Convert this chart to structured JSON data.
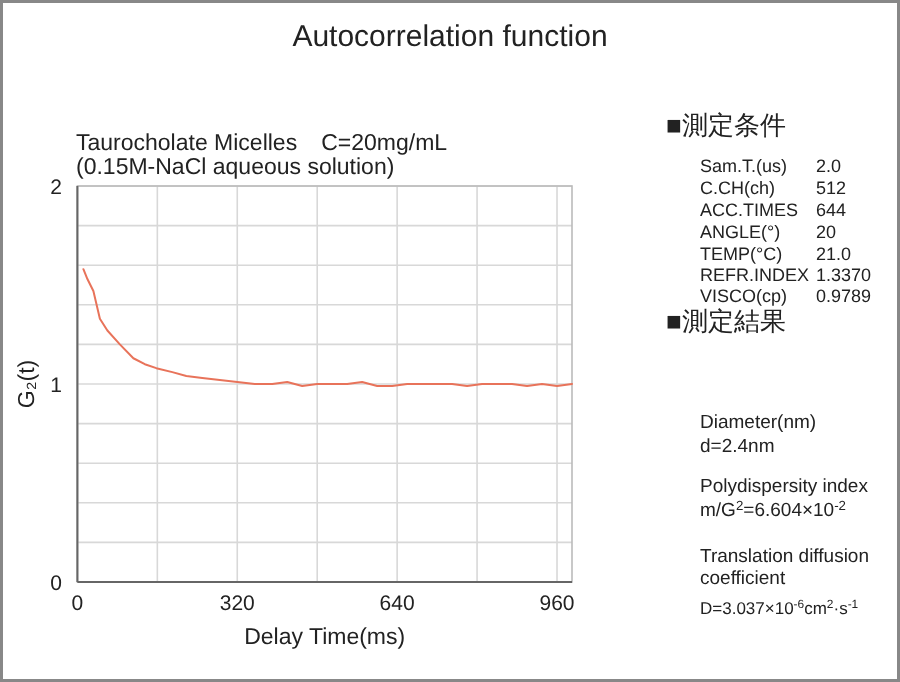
{
  "chart_data": {
    "type": "line",
    "title": "Autocorrelation function",
    "subtitle": "Taurocholate Micelles　C=20mg/mL",
    "xlabel": "Delay Time(ms)",
    "ylabel": "G₂(t)",
    "x": [
      12,
      20,
      32,
      45,
      60,
      85,
      112,
      135,
      158,
      190,
      218,
      250,
      285,
      320,
      355,
      390,
      420,
      450,
      480,
      510,
      540,
      570,
      600,
      630,
      660,
      690,
      720,
      750,
      780,
      810,
      840,
      870,
      900,
      930,
      960,
      990
    ],
    "series": [
      {
        "color": "#e8735a",
        "values": [
          1.58,
          1.53,
          1.47,
          1.33,
          1.27,
          1.2,
          1.13,
          1.1,
          1.08,
          1.06,
          1.04,
          1.03,
          1.02,
          1.01,
          1.0,
          1.0,
          1.01,
          0.99,
          1.0,
          1.0,
          1.0,
          1.01,
          0.99,
          0.99,
          1.0,
          1.0,
          1.0,
          1.0,
          0.99,
          1.0,
          1.0,
          1.0,
          0.99,
          1.0,
          0.99,
          1.0
        ]
      }
    ],
    "xlim": [
      0,
      990
    ],
    "ylim": [
      0,
      2
    ],
    "xticks": [
      0,
      {
        "value": 160,
        "label": null
      },
      320,
      {
        "value": 480,
        "label": null
      },
      640,
      {
        "value": 800,
        "label": null
      },
      960
    ],
    "yticks": [
      0,
      {
        "value": 0.2,
        "label": null
      },
      {
        "value": 0.4,
        "label": null
      },
      {
        "value": 0.6,
        "label": null
      },
      {
        "value": 0.8,
        "label": null
      },
      1,
      {
        "value": 1.2,
        "label": null
      },
      {
        "value": 1.4,
        "label": null
      },
      {
        "value": 1.6,
        "label": null
      },
      {
        "value": 1.8,
        "label": null
      },
      2
    ],
    "grid": true,
    "marker": "none",
    "line_style": "solid",
    "annotations": [
      "(0.15M-NaCl aqueous solution)",
      "■測定条件",
      "Sam.T.(us)",
      "2.0",
      "C.CH(ch)",
      "512",
      "ACC.TIMES",
      "644",
      "ANGLE(°)",
      "20",
      "TEMP(°C)",
      "21.0",
      "REFR.INDEX",
      "1.3370",
      "VISCO(cp)",
      "0.9789",
      "■測定結果",
      "Diameter(nm)",
      "d=2.4nm",
      "Polydispersity index",
      "m/G$^{2}$=6.604×10$^{-2}$",
      "Translation diffusion coefficient",
      "D=3.037×10$^{-6}$cm$^{2}$·s$^{-1}$"
    ]
  }
}
